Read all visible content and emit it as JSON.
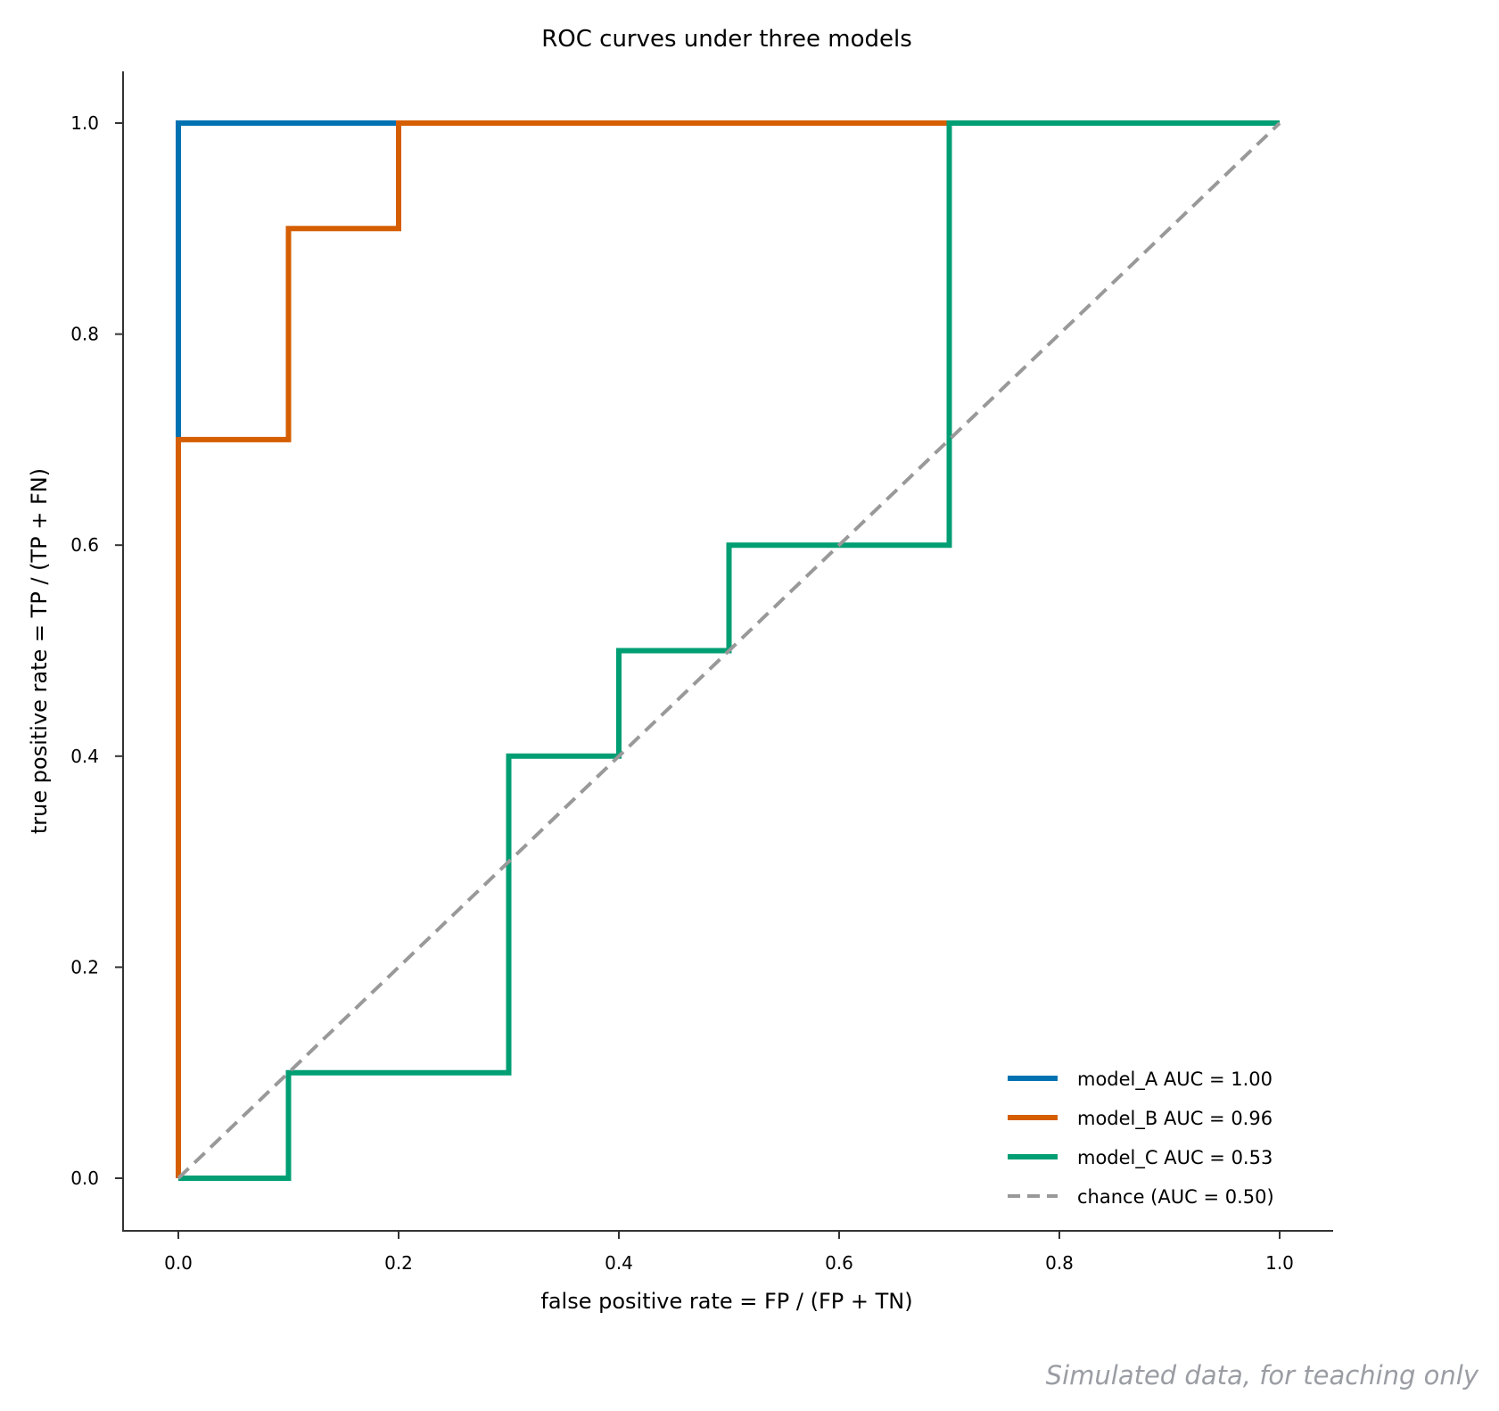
{
  "chart_data": {
    "type": "line",
    "title": "ROC curves under three models",
    "xlabel": "false positive rate = FP / (FP + TN)",
    "ylabel": "true positive rate = TP / (TP + FN)",
    "xlim": [
      -0.05,
      1.05
    ],
    "ylim": [
      -0.05,
      1.05
    ],
    "xticks": [
      "0.0",
      "0.2",
      "0.4",
      "0.6",
      "0.8",
      "1.0"
    ],
    "yticks": [
      "0.0",
      "0.2",
      "0.4",
      "0.6",
      "0.8",
      "1.0"
    ],
    "grid": false,
    "legend_position": "lower-right",
    "series": [
      {
        "name": "model_A  AUC = 1.00",
        "color": "#0072b2",
        "style": "solid",
        "x": [
          0.0,
          0.0,
          0.2
        ],
        "y": [
          0.0,
          1.0,
          1.0
        ]
      },
      {
        "name": "model_B  AUC = 0.96",
        "color": "#d55e00",
        "style": "solid",
        "x": [
          0.0,
          0.0,
          0.1,
          0.1,
          0.2,
          0.2,
          0.7
        ],
        "y": [
          0.0,
          0.7,
          0.7,
          0.9,
          0.9,
          1.0,
          1.0
        ]
      },
      {
        "name": "model_C  AUC = 0.53",
        "color": "#009e73",
        "style": "solid",
        "x": [
          0.0,
          0.1,
          0.1,
          0.3,
          0.3,
          0.4,
          0.4,
          0.5,
          0.5,
          0.7,
          0.7,
          1.0
        ],
        "y": [
          0.0,
          0.0,
          0.1,
          0.1,
          0.4,
          0.4,
          0.5,
          0.5,
          0.6,
          0.6,
          1.0,
          1.0
        ]
      },
      {
        "name": "chance (AUC = 0.50)",
        "color": "#999999",
        "style": "dashed",
        "x": [
          0.0,
          1.0
        ],
        "y": [
          0.0,
          1.0
        ]
      }
    ]
  },
  "footnote": "Simulated data, for teaching only"
}
